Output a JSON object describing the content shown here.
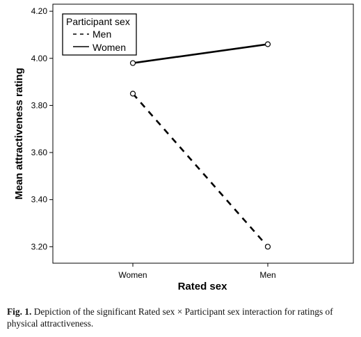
{
  "chart_data": {
    "type": "line",
    "categories": [
      "Women",
      "Men"
    ],
    "series": [
      {
        "name": "Men",
        "values": [
          3.85,
          3.2
        ],
        "line_style": "dashed"
      },
      {
        "name": "Women",
        "values": [
          3.98,
          4.06
        ],
        "line_style": "solid"
      }
    ],
    "xlabel": "Rated sex",
    "ylabel": "Mean attractiveness rating",
    "ylim": [
      3.13,
      4.23
    ],
    "yticks": [
      "3.20",
      "3.40",
      "3.60",
      "3.80",
      "4.00",
      "4.20"
    ],
    "ytick_values": [
      3.2,
      3.4,
      3.6,
      3.8,
      4.0,
      4.2
    ],
    "legend": {
      "title": "Participant sex",
      "placement": "top-left"
    },
    "grid": false
  },
  "caption": {
    "label": "Fig. 1.",
    "text": "Depiction of the significant Rated sex × Participant sex interaction for ratings of physical attractiveness."
  }
}
